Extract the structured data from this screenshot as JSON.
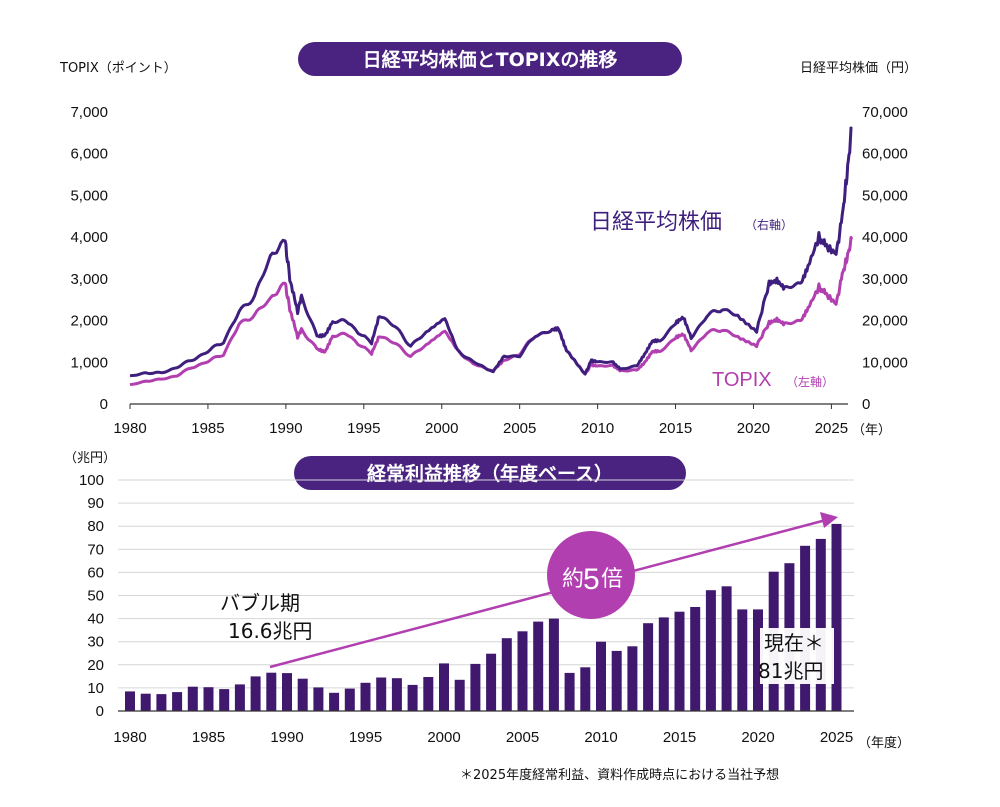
{
  "colors": {
    "nikkei": "#3f1f7e",
    "topix": "#b13fb0",
    "bar": "#40196e",
    "pill": "#4a2280",
    "circle": "#b13fb0",
    "arrow": "#b13fb0"
  },
  "top": {
    "title": "日経平均株価とTOPIXの推移",
    "left_unit": "TOPIX（ポイント）",
    "right_unit": "日経平均株価（円）",
    "x_unit": "（年）",
    "left_ticks": [
      "0",
      "1,000",
      "2,000",
      "3,000",
      "4,000",
      "5,000",
      "6,000",
      "7,000"
    ],
    "right_ticks": [
      "0",
      "10,000",
      "20,000",
      "30,000",
      "40,000",
      "50,000",
      "60,000",
      "70,000"
    ],
    "x_ticks": [
      "1980",
      "1985",
      "1990",
      "1995",
      "2000",
      "2005",
      "2010",
      "2015",
      "2020",
      "2025"
    ],
    "nikkei_label": "日経平均株価",
    "nikkei_axis_note": "（右軸）",
    "topix_label": "TOPIX",
    "topix_axis_note": "（左軸）"
  },
  "bottom": {
    "title": "経常利益推移（年度ベース）",
    "y_unit": "（兆円）",
    "x_unit": "（年度）",
    "y_ticks": [
      "0",
      "10",
      "20",
      "30",
      "40",
      "50",
      "60",
      "70",
      "80",
      "90",
      "100"
    ],
    "x_ticks": [
      "1980",
      "1985",
      "1990",
      "1995",
      "2000",
      "2005",
      "2010",
      "2015",
      "2020",
      "2025"
    ],
    "bubble_label_1": "バブル期",
    "bubble_label_2": "16.6兆円",
    "current_label_1": "現在＊",
    "current_label_2": "81兆円",
    "multiplier_1": "約",
    "multiplier_2": "5",
    "multiplier_3": "倍",
    "footnote": "＊2025年度経常利益、資料作成時点における当社予想"
  },
  "chart_data": [
    {
      "type": "line",
      "title": "日経平均株価とTOPIXの推移",
      "xlabel": "（年）",
      "xlim": [
        1980,
        2026
      ],
      "series": [
        {
          "name": "日経平均株価",
          "axis": "right",
          "ylim": [
            0,
            70000
          ],
          "points": [
            [
              1980,
              6600
            ],
            [
              1981,
              7500
            ],
            [
              1982,
              7400
            ],
            [
              1983,
              8800
            ],
            [
              1984,
              10600
            ],
            [
              1985,
              12600
            ],
            [
              1986,
              15000
            ],
            [
              1987,
              22000
            ],
            [
              1988,
              26000
            ],
            [
              1989,
              35000
            ],
            [
              1989.95,
              38900
            ],
            [
              1990.3,
              29000
            ],
            [
              1990.75,
              22000
            ],
            [
              1991,
              26000
            ],
            [
              1992,
              16000
            ],
            [
              1992.5,
              16500
            ],
            [
              1993,
              20000
            ],
            [
              1994,
              19500
            ],
            [
              1995.5,
              14500
            ],
            [
              1996,
              21500
            ],
            [
              1997,
              18500
            ],
            [
              1998,
              14000
            ],
            [
              1999,
              17000
            ],
            [
              2000.2,
              20500
            ],
            [
              2001,
              13000
            ],
            [
              2002,
              10000
            ],
            [
              2003.3,
              7800
            ],
            [
              2004,
              11500
            ],
            [
              2005,
              11500
            ],
            [
              2006,
              16500
            ],
            [
              2007,
              17500
            ],
            [
              2007.5,
              18000
            ],
            [
              2008,
              13000
            ],
            [
              2009.2,
              7200
            ],
            [
              2009.6,
              10500
            ],
            [
              2010,
              10000
            ],
            [
              2011,
              10000
            ],
            [
              2011.5,
              8400
            ],
            [
              2012.5,
              9000
            ],
            [
              2013,
              12000
            ],
            [
              2013.5,
              15000
            ],
            [
              2014,
              15000
            ],
            [
              2015,
              19500
            ],
            [
              2015.5,
              20500
            ],
            [
              2016,
              16000
            ],
            [
              2017,
              21000
            ],
            [
              2018,
              23000
            ],
            [
              2019,
              21000
            ],
            [
              2020.2,
              17500
            ],
            [
              2021,
              29000
            ],
            [
              2021.5,
              30000
            ],
            [
              2022,
              27500
            ],
            [
              2023,
              29000
            ],
            [
              2023.5,
              33000
            ],
            [
              2024.2,
              40000
            ],
            [
              2024.6,
              38000
            ],
            [
              2025.3,
              36000
            ],
            [
              2025.7,
              45000
            ],
            [
              2026,
              55000
            ],
            [
              2026.3,
              66000
            ]
          ]
        },
        {
          "name": "TOPIX",
          "axis": "left",
          "ylim": [
            0,
            7000
          ],
          "points": [
            [
              1980,
              450
            ],
            [
              1981,
              550
            ],
            [
              1982,
              590
            ],
            [
              1983,
              680
            ],
            [
              1984,
              880
            ],
            [
              1985,
              1020
            ],
            [
              1986,
              1200
            ],
            [
              1987,
              1900
            ],
            [
              1988,
              2150
            ],
            [
              1989,
              2500
            ],
            [
              1989.95,
              2880
            ],
            [
              1990.3,
              2200
            ],
            [
              1990.75,
              1600
            ],
            [
              1991,
              1800
            ],
            [
              1992,
              1300
            ],
            [
              1992.5,
              1250
            ],
            [
              1993,
              1650
            ],
            [
              1994,
              1650
            ],
            [
              1995.5,
              1200
            ],
            [
              1996,
              1650
            ],
            [
              1997,
              1450
            ],
            [
              1998,
              1150
            ],
            [
              1999,
              1400
            ],
            [
              2000.2,
              1750
            ],
            [
              2001,
              1300
            ],
            [
              2002,
              950
            ],
            [
              2003.3,
              800
            ],
            [
              2004,
              1050
            ],
            [
              2005,
              1200
            ],
            [
              2006,
              1650
            ],
            [
              2007,
              1750
            ],
            [
              2007.5,
              1800
            ],
            [
              2008,
              1300
            ],
            [
              2009.2,
              720
            ],
            [
              2009.6,
              950
            ],
            [
              2010,
              900
            ],
            [
              2011,
              920
            ],
            [
              2011.5,
              800
            ],
            [
              2012.5,
              800
            ],
            [
              2013,
              1000
            ],
            [
              2013.5,
              1250
            ],
            [
              2014,
              1250
            ],
            [
              2015,
              1600
            ],
            [
              2015.5,
              1650
            ],
            [
              2016,
              1300
            ],
            [
              2017,
              1700
            ],
            [
              2018,
              1800
            ],
            [
              2019,
              1600
            ],
            [
              2020.2,
              1400
            ],
            [
              2021,
              1950
            ],
            [
              2021.5,
              2050
            ],
            [
              2022,
              1900
            ],
            [
              2023,
              2000
            ],
            [
              2023.5,
              2300
            ],
            [
              2024.2,
              2800
            ],
            [
              2024.6,
              2650
            ],
            [
              2025.3,
              2400
            ],
            [
              2025.7,
              3100
            ],
            [
              2026,
              3500
            ],
            [
              2026.3,
              3950
            ]
          ]
        }
      ]
    },
    {
      "type": "bar",
      "title": "経常利益推移（年度ベース）",
      "ylabel": "（兆円）",
      "xlabel": "（年度）",
      "ylim": [
        0,
        100
      ],
      "categories": [
        1980,
        1981,
        1982,
        1983,
        1984,
        1985,
        1986,
        1987,
        1988,
        1989,
        1990,
        1991,
        1992,
        1993,
        1994,
        1995,
        1996,
        1997,
        1998,
        1999,
        2000,
        2001,
        2002,
        2003,
        2004,
        2005,
        2006,
        2007,
        2008,
        2009,
        2010,
        2011,
        2012,
        2013,
        2014,
        2015,
        2016,
        2017,
        2018,
        2019,
        2020,
        2021,
        2022,
        2023,
        2024,
        2025
      ],
      "values": [
        8.5,
        7.5,
        7.3,
        8.2,
        10.5,
        10.3,
        9.5,
        11.5,
        15,
        16.6,
        16.4,
        14,
        10.2,
        7.9,
        9.7,
        12.2,
        14.5,
        14.2,
        11.3,
        14.7,
        20.6,
        13.5,
        20.4,
        24.8,
        31.5,
        34.5,
        38.7,
        40,
        16.5,
        18.9,
        30,
        26,
        28,
        38,
        40.5,
        43,
        45,
        52.3,
        54,
        44,
        44,
        60.3,
        64,
        71.5,
        74.5,
        81
      ]
    }
  ]
}
